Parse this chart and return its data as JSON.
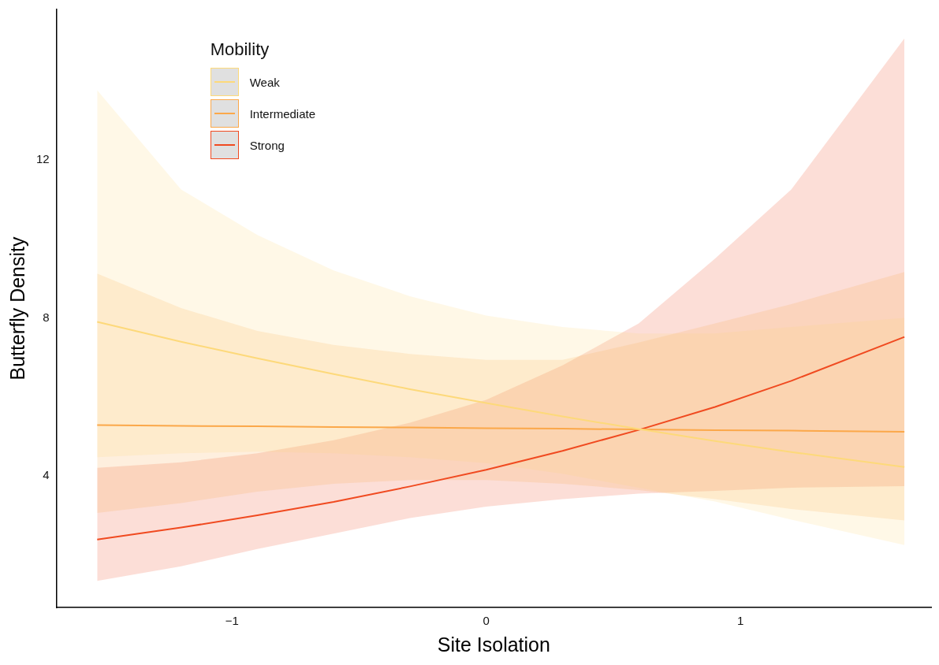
{
  "chart_data": {
    "type": "line",
    "xlabel": "Site Isolation",
    "ylabel": "Butterfly Density",
    "legend_title": "Mobility",
    "legend": "top left",
    "grid": false,
    "marker": "none",
    "x": [
      -1.53,
      -1.2,
      -0.9,
      -0.6,
      -0.3,
      0,
      0.3,
      0.6,
      0.9,
      1.2,
      1.645
    ],
    "xlim": [
      -1.69,
      1.75
    ],
    "xticks": [
      {
        "value": -1,
        "label": "−1"
      },
      0,
      1
    ],
    "ylim": [
      0.68,
      15.8
    ],
    "yticks": [
      4,
      8,
      12
    ],
    "series": [
      {
        "name": "Weak",
        "color": "#fdd97a",
        "values": [
          7.9,
          7.4,
          6.98,
          6.58,
          6.2,
          5.85,
          5.51,
          5.19,
          4.89,
          4.61,
          4.23
        ],
        "lower": [
          4.48,
          4.58,
          4.62,
          4.58,
          4.48,
          4.33,
          4.06,
          3.71,
          3.36,
          2.9,
          2.26
        ],
        "upper": [
          13.76,
          11.25,
          10.1,
          9.2,
          8.55,
          8.06,
          7.77,
          7.61,
          7.61,
          7.77,
          8.0
        ]
      },
      {
        "name": "Intermediate",
        "color": "#fba84a",
        "values": [
          5.29,
          5.27,
          5.26,
          5.24,
          5.23,
          5.21,
          5.2,
          5.18,
          5.16,
          5.15,
          5.12
        ],
        "lower": [
          3.07,
          3.32,
          3.61,
          3.81,
          3.9,
          3.9,
          3.81,
          3.65,
          3.42,
          3.17,
          2.88
        ],
        "upper": [
          9.12,
          8.25,
          7.67,
          7.32,
          7.09,
          6.94,
          6.94,
          7.38,
          7.86,
          8.35,
          9.16
        ]
      },
      {
        "name": "Strong",
        "color": "#f04a20",
        "values": [
          2.4,
          2.7,
          3.01,
          3.35,
          3.74,
          4.16,
          4.64,
          5.17,
          5.75,
          6.41,
          7.52
        ],
        "lower": [
          1.35,
          1.72,
          2.16,
          2.55,
          2.94,
          3.23,
          3.42,
          3.56,
          3.63,
          3.71,
          3.75
        ],
        "upper": [
          4.21,
          4.35,
          4.58,
          4.91,
          5.35,
          5.93,
          6.8,
          7.86,
          9.5,
          11.25,
          15.07
        ]
      }
    ]
  }
}
